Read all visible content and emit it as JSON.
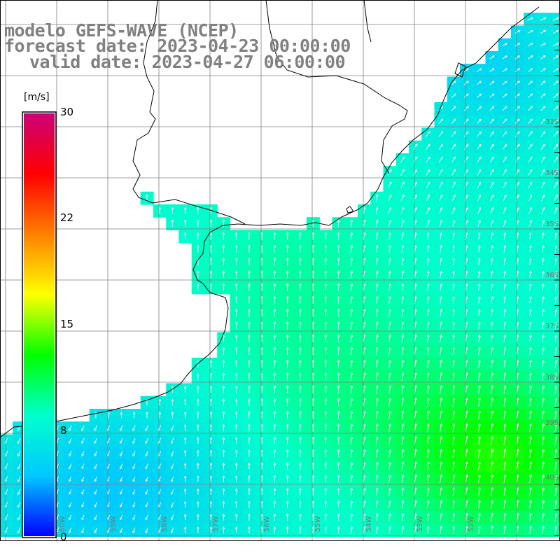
{
  "title": {
    "line1": "modelo GEFS-WAVE (NCEP)",
    "line2": "forecast date: 2023-04-23 00:00:00",
    "line3": "valid date: 2023-04-27 06:00:00"
  },
  "colorbar": {
    "unit": "[m/s]",
    "min": 0,
    "max": 30,
    "ticks": [
      "30",
      "22",
      "15",
      "8",
      "0"
    ],
    "tick_values": [
      30,
      22,
      15,
      8,
      0
    ],
    "colors": [
      "#0000ff",
      "#00c8ff",
      "#00ffcc",
      "#00ff00",
      "#ffff00",
      "#ff8000",
      "#ff0000",
      "#cc0077"
    ]
  },
  "map": {
    "land_color": "#ffffff",
    "coast_color": "#000000",
    "grid_color": "#808080",
    "lat_labels": [
      "33S",
      "34S",
      "35S",
      "36S",
      "37S",
      "38S",
      "39S",
      "40S"
    ],
    "lon_labels": [
      "60W",
      "59W",
      "58W",
      "57W",
      "56W",
      "55W",
      "54W",
      "53W",
      "52W"
    ]
  }
}
